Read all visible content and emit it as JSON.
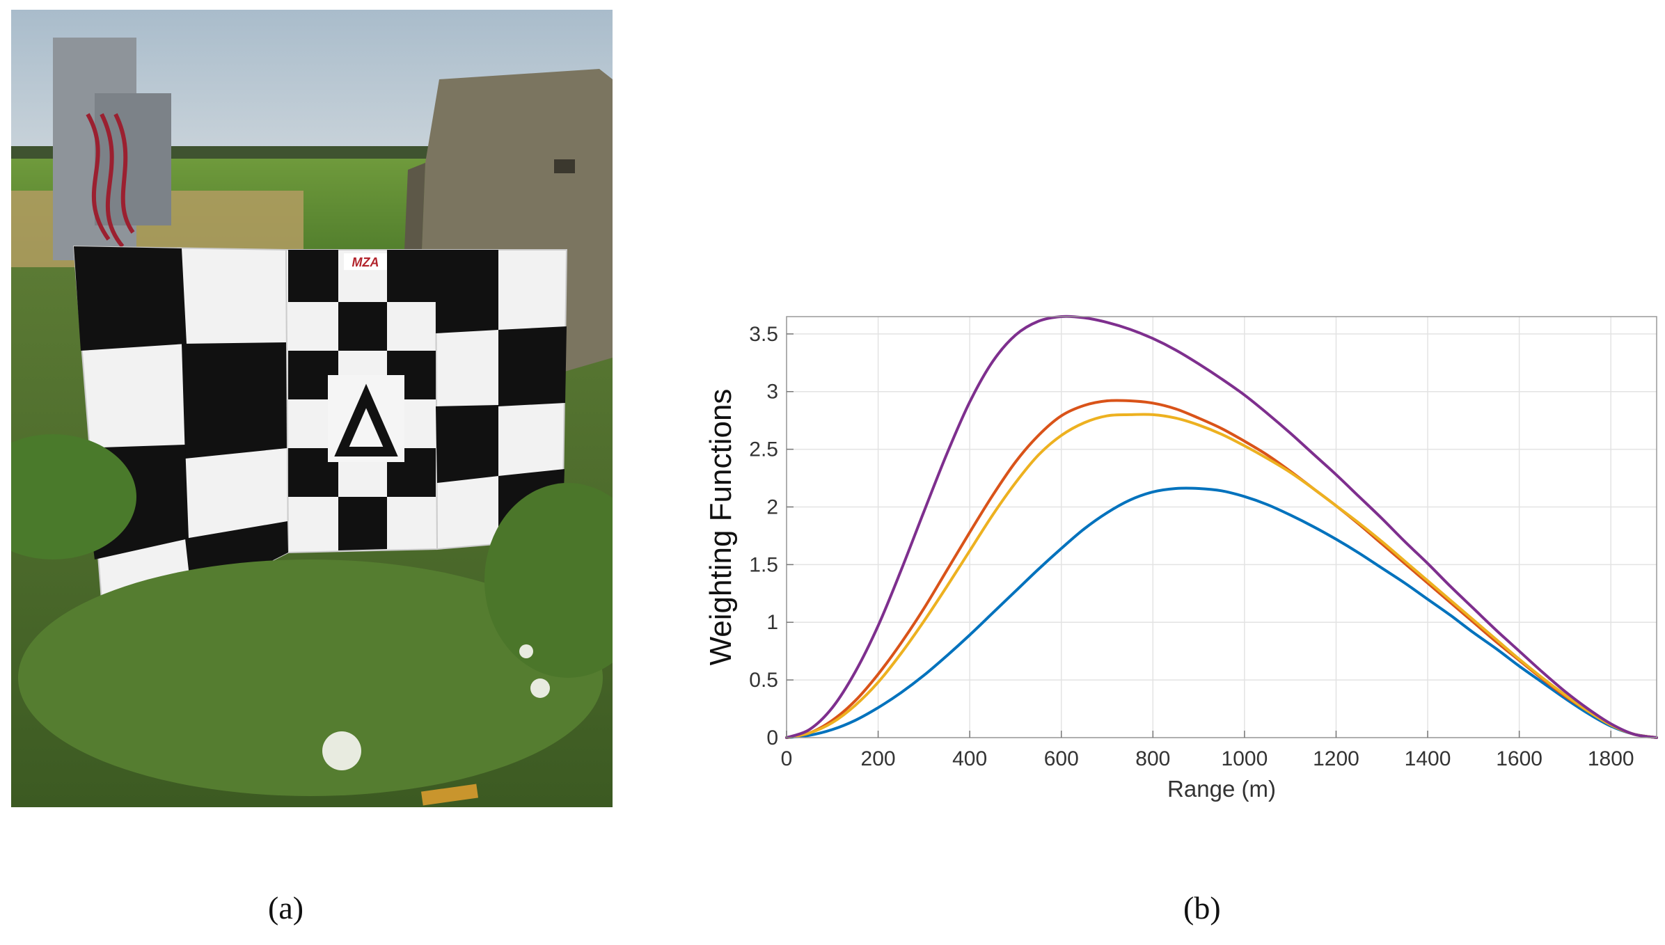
{
  "figure": {
    "captions": {
      "a": "(a)",
      "b": "(b)"
    }
  },
  "photo": {
    "description_icon": "photo-of-checkerboard-target",
    "sign_logo_text": "MZA"
  },
  "chart_data": {
    "type": "line",
    "title": "",
    "xlabel": "Range (m)",
    "ylabel": "Weighting Functions",
    "xlim": [
      0,
      1900
    ],
    "ylim": [
      0,
      3.65
    ],
    "xticks": [
      0,
      200,
      400,
      600,
      800,
      1000,
      1200,
      1400,
      1600,
      1800
    ],
    "yticks": [
      0,
      0.5,
      1,
      1.5,
      2,
      2.5,
      3,
      3.5
    ],
    "xtick_labels": [
      "0",
      "200",
      "400",
      "600",
      "800",
      "1000",
      "1200",
      "1400",
      "1600",
      "1800"
    ],
    "ytick_labels": [
      "0",
      "0.5",
      "1",
      "1.5",
      "2",
      "2.5",
      "3",
      "3.5"
    ],
    "grid": true,
    "legend": "none",
    "series": [
      {
        "color": "#0072BD",
        "x": [
          0,
          50,
          100,
          150,
          200,
          250,
          300,
          350,
          400,
          450,
          500,
          550,
          600,
          650,
          700,
          750,
          800,
          850,
          900,
          950,
          1000,
          1050,
          1100,
          1150,
          1200,
          1250,
          1300,
          1350,
          1400,
          1450,
          1500,
          1550,
          1600,
          1650,
          1700,
          1750,
          1800,
          1850,
          1900
        ],
        "values": [
          0,
          0.02,
          0.07,
          0.15,
          0.26,
          0.39,
          0.54,
          0.71,
          0.89,
          1.08,
          1.27,
          1.46,
          1.64,
          1.81,
          1.95,
          2.06,
          2.13,
          2.16,
          2.16,
          2.14,
          2.09,
          2.02,
          1.93,
          1.83,
          1.72,
          1.6,
          1.47,
          1.34,
          1.2,
          1.06,
          0.91,
          0.77,
          0.62,
          0.48,
          0.34,
          0.21,
          0.1,
          0.03,
          0
        ]
      },
      {
        "color": "#D95319",
        "x": [
          0,
          50,
          100,
          150,
          200,
          250,
          300,
          350,
          400,
          450,
          500,
          550,
          600,
          650,
          700,
          750,
          800,
          850,
          900,
          950,
          1000,
          1050,
          1100,
          1150,
          1200,
          1250,
          1300,
          1350,
          1400,
          1450,
          1500,
          1550,
          1600,
          1650,
          1700,
          1750,
          1800,
          1850,
          1900
        ],
        "values": [
          0,
          0.04,
          0.15,
          0.32,
          0.55,
          0.82,
          1.12,
          1.45,
          1.78,
          2.1,
          2.39,
          2.62,
          2.79,
          2.88,
          2.92,
          2.92,
          2.9,
          2.85,
          2.77,
          2.68,
          2.57,
          2.45,
          2.31,
          2.16,
          2.01,
          1.85,
          1.68,
          1.51,
          1.34,
          1.17,
          1.0,
          0.83,
          0.67,
          0.51,
          0.36,
          0.23,
          0.11,
          0.03,
          0
        ]
      },
      {
        "color": "#EDB120",
        "x": [
          0,
          50,
          100,
          150,
          200,
          250,
          300,
          350,
          400,
          450,
          500,
          550,
          600,
          650,
          700,
          750,
          800,
          850,
          900,
          950,
          1000,
          1050,
          1100,
          1150,
          1200,
          1250,
          1300,
          1350,
          1400,
          1450,
          1500,
          1550,
          1600,
          1650,
          1700,
          1750,
          1800,
          1850,
          1900
        ],
        "values": [
          0,
          0.04,
          0.13,
          0.28,
          0.48,
          0.73,
          1.01,
          1.31,
          1.62,
          1.93,
          2.21,
          2.45,
          2.62,
          2.73,
          2.79,
          2.8,
          2.8,
          2.77,
          2.71,
          2.63,
          2.53,
          2.42,
          2.3,
          2.16,
          2.01,
          1.86,
          1.7,
          1.53,
          1.36,
          1.19,
          1.02,
          0.85,
          0.68,
          0.52,
          0.37,
          0.23,
          0.11,
          0.03,
          0
        ]
      },
      {
        "color": "#7E2F8E",
        "x": [
          0,
          50,
          100,
          150,
          200,
          250,
          300,
          350,
          400,
          450,
          500,
          550,
          600,
          650,
          700,
          750,
          800,
          850,
          900,
          950,
          1000,
          1050,
          1100,
          1150,
          1200,
          1250,
          1300,
          1350,
          1400,
          1450,
          1500,
          1550,
          1600,
          1650,
          1700,
          1750,
          1800,
          1850,
          1900
        ],
        "values": [
          0,
          0.07,
          0.26,
          0.57,
          0.97,
          1.45,
          1.96,
          2.46,
          2.91,
          3.26,
          3.49,
          3.61,
          3.65,
          3.64,
          3.6,
          3.54,
          3.46,
          3.36,
          3.24,
          3.11,
          2.97,
          2.81,
          2.64,
          2.46,
          2.28,
          2.09,
          1.9,
          1.7,
          1.51,
          1.31,
          1.12,
          0.93,
          0.75,
          0.57,
          0.4,
          0.25,
          0.12,
          0.03,
          0
        ]
      }
    ]
  }
}
